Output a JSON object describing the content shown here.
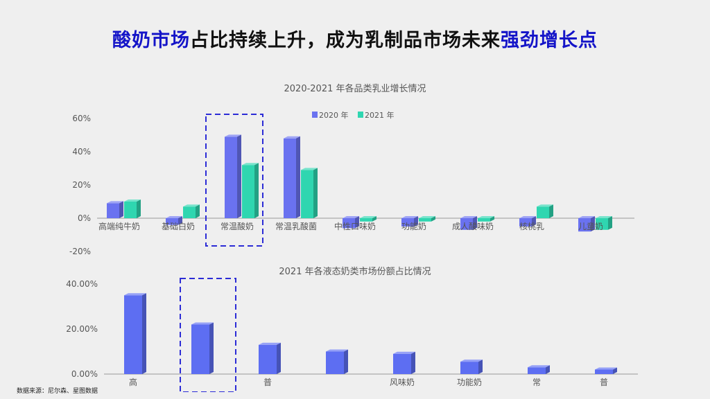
{
  "page": {
    "title_hl1": "酸奶市场",
    "title_mid": "占比持续上升，成为乳制品市场未来",
    "title_hl2": "强劲增长点",
    "source": "数据来源：尼尔森、星图数据",
    "colors": {
      "highlight": "#1414c8",
      "series2020": "#6a72f0",
      "series2021": "#2fd6b0",
      "bar2021_market": "#5d6ef2",
      "dashed_box": "#2b2bd6"
    }
  },
  "chart_data": [
    {
      "type": "bar",
      "title": "2020-2021 年各品类乳业增长情况",
      "categories": [
        "高端纯牛奶",
        "基础白奶",
        "常温酸奶",
        "常温乳酸菌",
        "中性口味奶",
        "功能奶",
        "成人酸味奶",
        "核桃乳",
        "儿童奶"
      ],
      "series": [
        {
          "name": "2020 年",
          "values": [
            9,
            -4,
            49,
            48,
            -6,
            -5,
            -7,
            -5,
            -8
          ]
        },
        {
          "name": "2021 年",
          "values": [
            10,
            7,
            32,
            29,
            -2,
            -2,
            -2,
            7,
            -7
          ]
        }
      ],
      "yticks": [
        "60%",
        "40%",
        "20%",
        "0%",
        "-20%"
      ],
      "ylim": [
        -20,
        60
      ],
      "legend_position": "top-center",
      "highlight_category": "常温酸奶"
    },
    {
      "type": "bar",
      "title": "2021 年各液态奶类市场份额占比情况",
      "categories": [
        "高",
        "",
        "普",
        "",
        "风味奶",
        "功能奶",
        "常",
        "普"
      ],
      "values": [
        35,
        22,
        13,
        10,
        9,
        5.5,
        3,
        2
      ],
      "yticks": [
        "40.00%",
        "20.00%",
        "0.00%"
      ],
      "ylim": [
        0,
        40
      ],
      "highlight_index": 1
    }
  ]
}
